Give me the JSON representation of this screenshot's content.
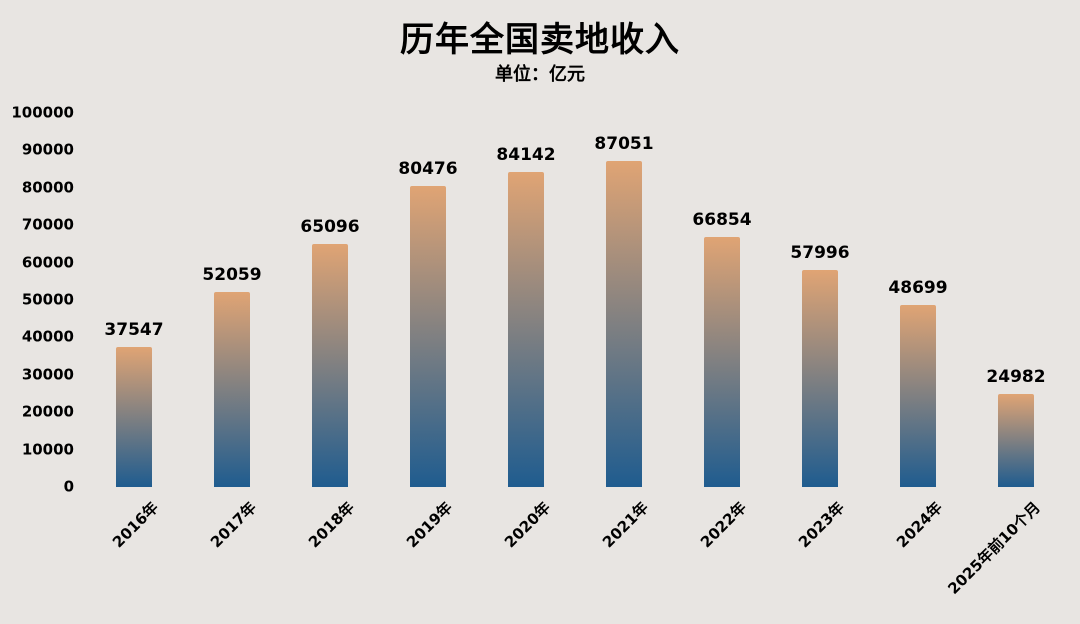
{
  "title": "历年全国卖地收入",
  "subtitle": "单位：亿元",
  "colors": {
    "background": "#e8e5e2",
    "text": "#000000",
    "bar_gradient_top": "#e0a474",
    "bar_gradient_bottom": "#1f5c8f"
  },
  "chart_data": {
    "type": "bar",
    "title": "历年全国卖地收入",
    "subtitle": "单位：亿元",
    "categories": [
      "2016年",
      "2017年",
      "2018年",
      "2019年",
      "2020年",
      "2021年",
      "2022年",
      "2023年",
      "2024年",
      "2025年前10个月"
    ],
    "values": [
      37547,
      52059,
      65096,
      80476,
      84142,
      87051,
      66854,
      57996,
      48699,
      24982
    ],
    "xlabel": "",
    "ylabel": "",
    "ylim": [
      0,
      100000
    ],
    "ytick_step": 10000,
    "grid": false,
    "legend": false,
    "data_labels": true,
    "x_label_rotation_deg": 45
  }
}
